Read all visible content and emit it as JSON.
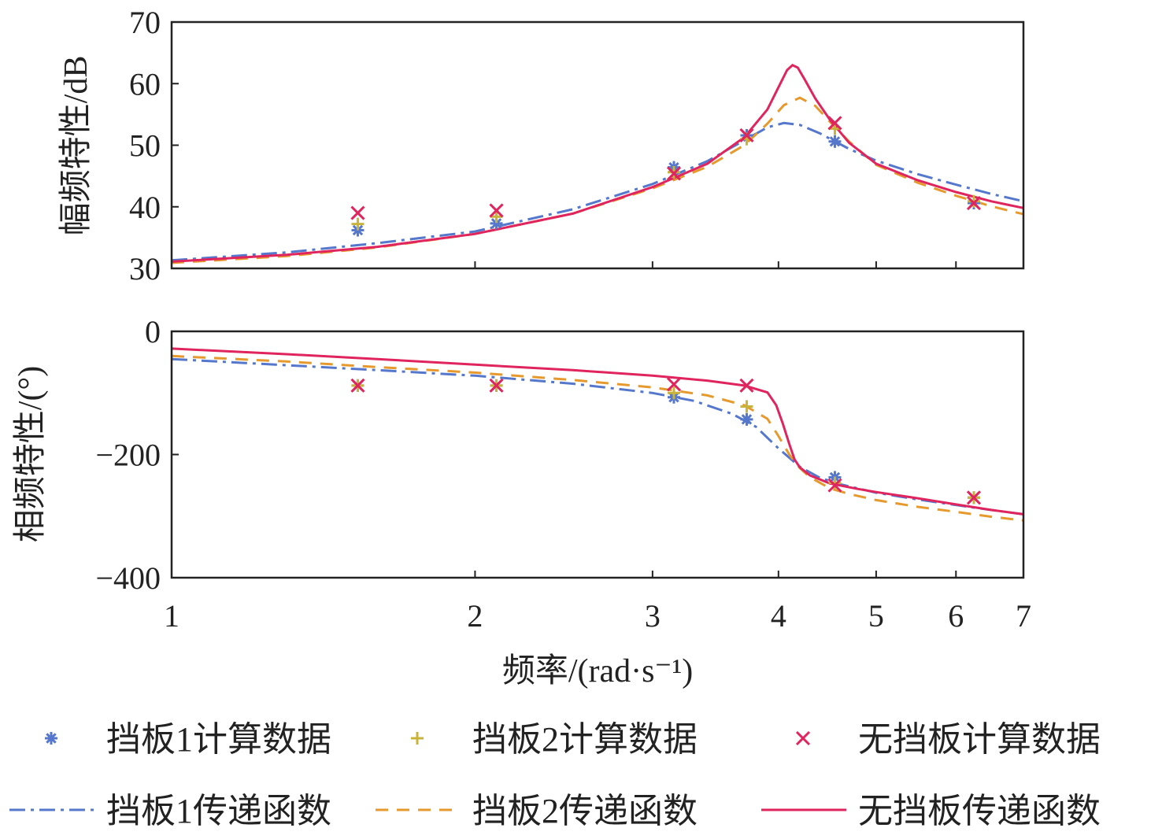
{
  "chart_data": [
    {
      "type": "line",
      "panel": "magnitude",
      "ylabel": "幅频特性/dB",
      "xscale": "log",
      "xlim": [
        1,
        7
      ],
      "ylim": [
        30,
        70
      ],
      "yticks": [
        30,
        40,
        50,
        60,
        70
      ],
      "ytick_labels": [
        "30",
        "40",
        "50",
        "60",
        "70"
      ],
      "grid": false,
      "series": [
        {
          "name": "挡板1传递函数",
          "style": "dash-dot",
          "color": "#5577cc",
          "x": [
            1.0,
            1.3,
            1.6,
            2.0,
            2.5,
            3.0,
            3.4,
            3.7,
            3.9,
            4.05,
            4.2,
            4.4,
            4.7,
            5.0,
            5.5,
            6.0,
            6.5,
            7.0
          ],
          "y": [
            31.3,
            32.6,
            34.1,
            36.0,
            39.6,
            43.7,
            47.4,
            50.8,
            52.9,
            53.6,
            53.3,
            51.9,
            49.4,
            47.5,
            45.3,
            43.6,
            42.1,
            40.9
          ]
        },
        {
          "name": "挡板2传递函数",
          "style": "dash",
          "color": "#e69a2e",
          "x": [
            1.0,
            1.3,
            1.6,
            2.0,
            2.5,
            3.0,
            3.4,
            3.7,
            3.9,
            4.05,
            4.2,
            4.35,
            4.5,
            4.7,
            5.0,
            5.5,
            6.0,
            6.5,
            7.0
          ],
          "y": [
            30.9,
            32.0,
            33.4,
            35.6,
            38.9,
            43.0,
            46.5,
            50.0,
            53.5,
            56.5,
            57.7,
            56.4,
            53.8,
            50.6,
            46.8,
            43.9,
            41.8,
            40.1,
            38.8
          ]
        },
        {
          "name": "无挡板传递函数",
          "style": "solid",
          "color": "#e0245e",
          "x": [
            1.0,
            1.3,
            1.6,
            2.0,
            2.5,
            3.0,
            3.4,
            3.7,
            3.9,
            4.0,
            4.08,
            4.13,
            4.18,
            4.25,
            4.35,
            4.5,
            4.7,
            5.0,
            5.5,
            6.0,
            6.5,
            7.0
          ],
          "y": [
            31.1,
            32.2,
            33.5,
            35.6,
            38.9,
            43.2,
            47.0,
            51.3,
            55.8,
            59.4,
            62.2,
            63.0,
            62.6,
            60.6,
            57.6,
            54.1,
            50.4,
            47.0,
            44.3,
            42.4,
            40.9,
            39.8
          ]
        },
        {
          "name": "挡板1计算数据",
          "style": "marker",
          "marker": "*",
          "color": "#5577cc",
          "x": [
            1.53,
            2.1,
            3.15,
            3.72,
            4.55,
            6.25
          ],
          "y": [
            36.2,
            37.3,
            46.4,
            51.6,
            50.6,
            40.6
          ]
        },
        {
          "name": "挡板2计算数据",
          "style": "marker",
          "marker": "+",
          "color": "#c8b43a",
          "x": [
            1.53,
            2.1,
            3.15,
            3.72,
            4.55,
            6.25
          ],
          "y": [
            37.2,
            38.4,
            45.6,
            51.0,
            52.7,
            40.9
          ]
        },
        {
          "name": "无挡板计算数据",
          "style": "marker",
          "marker": "x",
          "color": "#e0245e",
          "x": [
            1.53,
            2.1,
            3.15,
            3.72,
            4.55,
            6.25
          ],
          "y": [
            39.0,
            39.4,
            45.4,
            51.6,
            53.6,
            40.6
          ]
        }
      ]
    },
    {
      "type": "line",
      "panel": "phase",
      "ylabel": "相频特性/(°)",
      "xlabel": "频率/(rad·s⁻¹)",
      "xscale": "log",
      "xlim": [
        1,
        7
      ],
      "xticks": [
        1,
        2,
        3,
        4,
        5,
        6,
        7
      ],
      "xtick_labels": [
        "1",
        "2",
        "3",
        "4",
        "5",
        "6",
        "7"
      ],
      "ylim": [
        -400,
        0
      ],
      "yticks": [
        0,
        -200,
        -400
      ],
      "ytick_labels": [
        "0",
        "−200",
        "−400"
      ],
      "grid": false,
      "series": [
        {
          "name": "挡板1传递函数",
          "style": "dash-dot",
          "color": "#5577cc",
          "x": [
            1.0,
            1.3,
            1.6,
            2.0,
            2.5,
            3.0,
            3.3,
            3.6,
            3.8,
            4.0,
            4.2,
            4.4,
            4.6,
            5.0,
            5.5,
            6.0,
            6.5,
            7.0
          ],
          "y": [
            -45,
            -55,
            -63,
            -72,
            -85,
            -100,
            -113,
            -134,
            -155,
            -190,
            -220,
            -238,
            -248,
            -262,
            -273,
            -282,
            -290,
            -297
          ]
        },
        {
          "name": "挡板2传递函数",
          "style": "dash",
          "color": "#e69a2e",
          "x": [
            1.0,
            1.3,
            1.6,
            2.0,
            2.5,
            3.0,
            3.4,
            3.7,
            3.9,
            4.0,
            4.1,
            4.2,
            4.3,
            4.5,
            4.7,
            5.0,
            5.5,
            6.0,
            6.5,
            7.0
          ],
          "y": [
            -40,
            -49,
            -58,
            -67,
            -79,
            -91,
            -104,
            -120,
            -142,
            -170,
            -200,
            -222,
            -237,
            -255,
            -264,
            -274,
            -285,
            -293,
            -301,
            -307
          ]
        },
        {
          "name": "无挡板传递函数",
          "style": "solid",
          "color": "#e0245e",
          "x": [
            1.0,
            1.3,
            1.6,
            2.0,
            2.5,
            3.0,
            3.4,
            3.7,
            3.9,
            3.98,
            4.04,
            4.1,
            4.15,
            4.2,
            4.3,
            4.5,
            4.8,
            5.0,
            5.5,
            6.0,
            6.5,
            7.0
          ],
          "y": [
            -28,
            -37,
            -45,
            -54,
            -63,
            -72,
            -80,
            -88,
            -99,
            -120,
            -150,
            -183,
            -208,
            -221,
            -234,
            -247,
            -256,
            -261,
            -271,
            -281,
            -290,
            -297
          ]
        },
        {
          "name": "挡板1计算数据",
          "style": "marker",
          "marker": "*",
          "color": "#5577cc",
          "x": [
            1.53,
            2.1,
            3.15,
            3.72,
            4.55,
            6.25
          ],
          "y": [
            -88,
            -88,
            -107,
            -143,
            -237,
            -270
          ]
        },
        {
          "name": "挡板2计算数据",
          "style": "marker",
          "marker": "+",
          "color": "#c8b43a",
          "x": [
            1.53,
            2.1,
            3.15,
            3.72,
            4.55,
            6.25
          ],
          "y": [
            -88,
            -88,
            -100,
            -122,
            -246,
            -270
          ]
        },
        {
          "name": "无挡板计算数据",
          "style": "marker",
          "marker": "x",
          "color": "#e0245e",
          "x": [
            1.53,
            2.1,
            3.15,
            3.72,
            4.55,
            6.25
          ],
          "y": [
            -88,
            -88,
            -86,
            -88,
            -250,
            -270
          ]
        }
      ]
    }
  ],
  "legend": {
    "placement": "bottom",
    "items": [
      {
        "label": "挡板1计算数据",
        "marker": "*",
        "color": "#5577cc"
      },
      {
        "label": "挡板2计算数据",
        "marker": "+",
        "color": "#c8b43a"
      },
      {
        "label": "无挡板计算数据",
        "marker": "x",
        "color": "#e0245e"
      },
      {
        "label": "挡板1传递函数",
        "line": "dash-dot",
        "color": "#5577cc"
      },
      {
        "label": "挡板2传递函数",
        "line": "dash",
        "color": "#e69a2e"
      },
      {
        "label": "无挡板传递函数",
        "line": "solid",
        "color": "#e0245e"
      }
    ]
  }
}
